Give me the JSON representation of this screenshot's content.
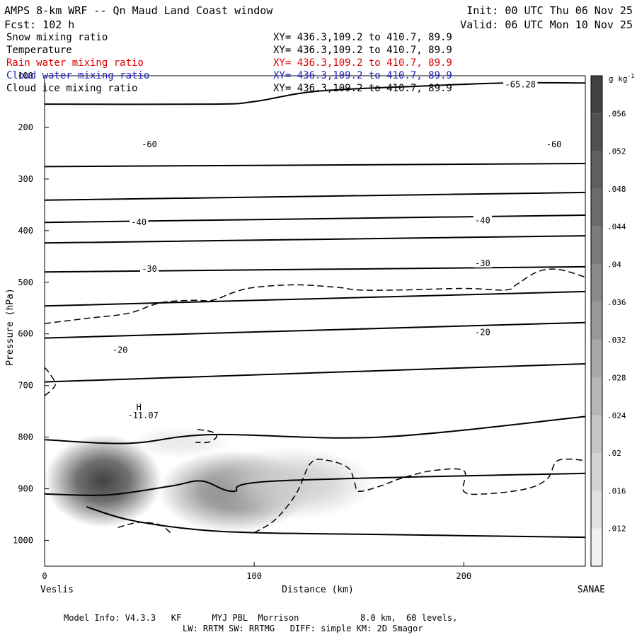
{
  "header": {
    "title": "AMPS 8-km WRF -- Qn Maud Land Coast window",
    "init": "Init: 00 UTC Thu 06 Nov 25",
    "forecast": "Fcst:  102 h",
    "valid": "Valid: 06 UTC Mon 10 Nov 25"
  },
  "fields": [
    {
      "name": "Snow mixing ratio",
      "xy": "XY= 436.3,109.2 to 410.7, 89.9",
      "color": "#000000"
    },
    {
      "name": "Temperature",
      "xy": "XY= 436.3,109.2 to 410.7, 89.9",
      "color": "#000000"
    },
    {
      "name": "Rain water mixing ratio",
      "xy": "XY= 436.3,109.2 to 410.7, 89.9",
      "color": "#e00000"
    },
    {
      "name": "Cloud water mixing ratio",
      "xy": "XY= 436.3,109.2 to 410.7, 89.9",
      "color": "#2020c0"
    },
    {
      "name": "Cloud ice mixing ratio",
      "xy": "XY= 436.3,109.2 to 410.7, 89.9",
      "color": "#000000"
    }
  ],
  "footer": {
    "line1": "Model Info: V4.3.3   KF      MYJ PBL  Morrison            8.0 km,  60 levels,",
    "line2": "LW: RRTM SW: RRTMG   DIFF: simple KM: 2D Smagor"
  },
  "chart_data": {
    "type": "cross-section contour",
    "xlabel": "Distance (km)",
    "ylabel": "Pressure (hPa)",
    "xlim": [
      0,
      258
    ],
    "ylim": [
      1050,
      100
    ],
    "xticks": [
      0,
      100,
      200
    ],
    "yticks": [
      100,
      200,
      300,
      400,
      500,
      600,
      700,
      800,
      900,
      1000
    ],
    "start_label": "Veslis",
    "end_label": "SANAE",
    "colorbar": {
      "unit": "g kg",
      "unit_exp": "-1",
      "ticks": [
        ".012",
        ".016",
        ".02",
        ".024",
        ".028",
        ".032",
        ".036",
        ".04",
        ".044",
        ".048",
        ".052",
        ".056"
      ],
      "tick_values": [
        0.012,
        0.016,
        0.02,
        0.024,
        0.028,
        0.032,
        0.036,
        0.04,
        0.044,
        0.048,
        0.052,
        0.056
      ],
      "range": [
        0.008,
        0.06
      ]
    },
    "shaded_maxima": [
      {
        "x": 28,
        "p": 885,
        "value": 0.058,
        "sx": 14,
        "sp": 45
      },
      {
        "x": 90,
        "p": 905,
        "value": 0.04,
        "sx": 18,
        "sp": 40
      },
      {
        "x": 118,
        "p": 890,
        "value": 0.02,
        "sx": 20,
        "sp": 35
      },
      {
        "x": 65,
        "p": 810,
        "value": 0.012,
        "sx": 12,
        "sp": 15
      }
    ],
    "temperature_contours": [
      {
        "label": "",
        "points": [
          [
            0,
            155
          ],
          [
            80,
            155
          ],
          [
            100,
            150
          ],
          [
            130,
            130
          ],
          [
            180,
            120
          ],
          [
            220,
            114
          ],
          [
            258,
            114
          ]
        ]
      },
      {
        "label": "",
        "points": [
          [
            0,
            276
          ],
          [
            258,
            270
          ]
        ]
      },
      {
        "label": "",
        "points": [
          [
            0,
            341
          ],
          [
            258,
            326
          ]
        ]
      },
      {
        "label": "",
        "points": [
          [
            0,
            384
          ],
          [
            258,
            370
          ]
        ]
      },
      {
        "label": "",
        "points": [
          [
            0,
            424
          ],
          [
            258,
            410
          ]
        ]
      },
      {
        "label": "",
        "points": [
          [
            0,
            480
          ],
          [
            258,
            470
          ]
        ]
      },
      {
        "label": "",
        "points": [
          [
            0,
            546
          ],
          [
            258,
            518
          ]
        ]
      },
      {
        "label": "",
        "points": [
          [
            0,
            608
          ],
          [
            258,
            578
          ]
        ]
      },
      {
        "label": "",
        "points": [
          [
            0,
            693
          ],
          [
            258,
            658
          ]
        ]
      },
      {
        "label": "",
        "points": [
          [
            0,
            805
          ],
          [
            40,
            812
          ],
          [
            80,
            795
          ],
          [
            160,
            800
          ],
          [
            258,
            760
          ]
        ]
      },
      {
        "label": "",
        "points": [
          [
            0,
            910
          ],
          [
            30,
            912
          ],
          [
            60,
            895
          ],
          [
            75,
            885
          ],
          [
            90,
            905
          ],
          [
            110,
            885
          ],
          [
            258,
            870
          ]
        ]
      },
      {
        "label": "",
        "points": [
          [
            20,
            935
          ],
          [
            40,
            960
          ],
          [
            70,
            978
          ],
          [
            100,
            985
          ],
          [
            150,
            988
          ],
          [
            258,
            994
          ]
        ]
      }
    ],
    "contour_labels": [
      {
        "text": "-65.28",
        "x": 227,
        "p": 117
      },
      {
        "text": "-60",
        "x": 50,
        "p": 233
      },
      {
        "text": "-60",
        "x": 243,
        "p": 233
      },
      {
        "text": "-40",
        "x": 45,
        "p": 384
      },
      {
        "text": "-40",
        "x": 209,
        "p": 380
      },
      {
        "text": "-30",
        "x": 50,
        "p": 474
      },
      {
        "text": "-30",
        "x": 209,
        "p": 463
      },
      {
        "text": "-20",
        "x": 36,
        "p": 631
      },
      {
        "text": "-20",
        "x": 209,
        "p": 597
      },
      {
        "text": "-11.07",
        "x": 47,
        "p": 758
      }
    ],
    "high_marker": {
      "text": "H",
      "x": 45,
      "p": 742
    },
    "dashed_contours": [
      {
        "points": [
          [
            0,
            580
          ],
          [
            20,
            570
          ],
          [
            40,
            560
          ],
          [
            55,
            540
          ],
          [
            70,
            535
          ],
          [
            80,
            535
          ],
          [
            90,
            520
          ],
          [
            100,
            510
          ],
          [
            120,
            505
          ],
          [
            140,
            510
          ],
          [
            150,
            515
          ],
          [
            170,
            515
          ],
          [
            200,
            512
          ],
          [
            220,
            515
          ],
          [
            225,
            505
          ],
          [
            235,
            480
          ],
          [
            245,
            475
          ],
          [
            258,
            490
          ]
        ]
      },
      {
        "points": [
          [
            0,
            665
          ],
          [
            3,
            680
          ],
          [
            5,
            700
          ],
          [
            0,
            720
          ]
        ]
      },
      {
        "points": [
          [
            73,
            785
          ],
          [
            80,
            790
          ],
          [
            82,
            800
          ],
          [
            78,
            810
          ],
          [
            72,
            810
          ]
        ]
      },
      {
        "points": [
          [
            100,
            985
          ],
          [
            110,
            960
          ],
          [
            120,
            910
          ],
          [
            127,
            850
          ],
          [
            135,
            845
          ],
          [
            145,
            860
          ],
          [
            148,
            890
          ],
          [
            150,
            905
          ],
          [
            160,
            895
          ],
          [
            170,
            880
          ],
          [
            185,
            865
          ],
          [
            200,
            865
          ],
          [
            200,
            905
          ],
          [
            210,
            910
          ],
          [
            230,
            900
          ],
          [
            240,
            880
          ],
          [
            245,
            845
          ],
          [
            258,
            845
          ]
        ]
      },
      {
        "points": [
          [
            35,
            975
          ],
          [
            45,
            965
          ],
          [
            55,
            970
          ],
          [
            60,
            985
          ]
        ]
      }
    ]
  }
}
